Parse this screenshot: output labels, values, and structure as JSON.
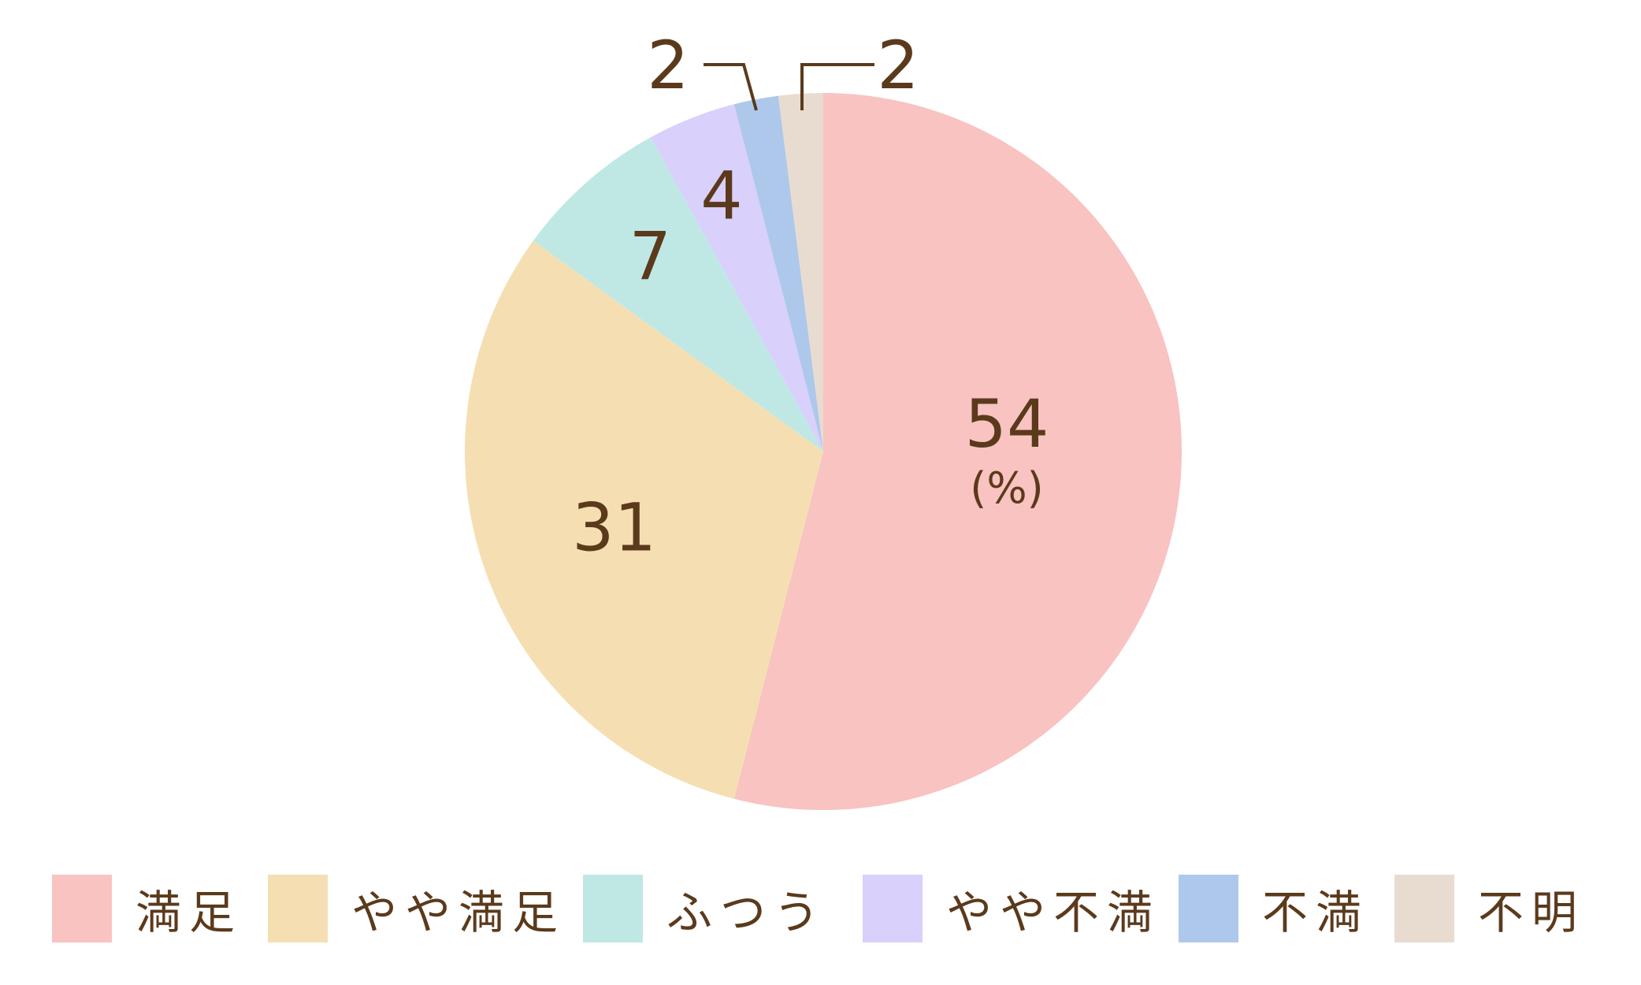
{
  "chart_data": {
    "type": "pie",
    "unit_label": "(%)",
    "start_angle": "12 o'clock",
    "direction": "clockwise",
    "legend_position": "bottom",
    "slices": [
      {
        "label": "満足",
        "value": 54,
        "color": "#f8c3c1"
      },
      {
        "label": "やや満足",
        "value": 31,
        "color": "#f5dfb2"
      },
      {
        "label": "ふつう",
        "value": 7,
        "color": "#bfe8e5"
      },
      {
        "label": "やや不満",
        "value": 4,
        "color": "#d9d0fb"
      },
      {
        "label": "不満",
        "value": 2,
        "color": "#adc8eb"
      },
      {
        "label": "不明",
        "value": 2,
        "color": "#e8dcd0"
      }
    ]
  },
  "colors": {
    "text": "#5b3a1c",
    "background": "#ffffff"
  }
}
